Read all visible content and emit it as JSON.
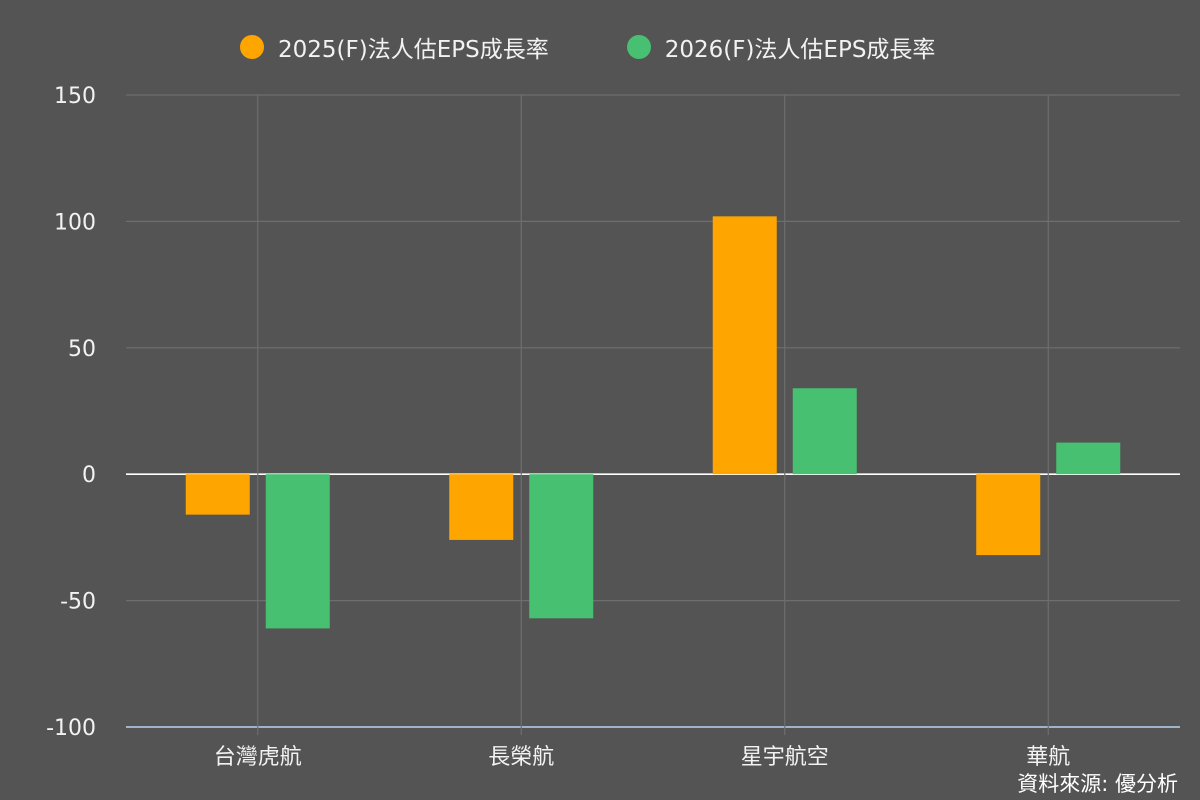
{
  "chart_data": {
    "type": "bar",
    "categories": [
      "台灣虎航",
      "長榮航",
      "星宇航空",
      "華航"
    ],
    "series": [
      {
        "name": "2025(F)法人估EPS成長率",
        "color": "#FFA500",
        "values": [
          -16,
          -26,
          102,
          -32
        ]
      },
      {
        "name": "2026(F)法人估EPS成長率",
        "color": "#48C072",
        "values": [
          -61,
          -57,
          34,
          12.5
        ]
      }
    ],
    "ylim": [
      -100,
      150
    ],
    "yticks": [
      -100,
      -50,
      0,
      50,
      100,
      150
    ],
    "ytick_labels": [
      "-100",
      "-50",
      "0",
      "50",
      "100",
      "150"
    ],
    "grid": true,
    "legend_position": "top",
    "source": "資料來源: 優分析"
  }
}
